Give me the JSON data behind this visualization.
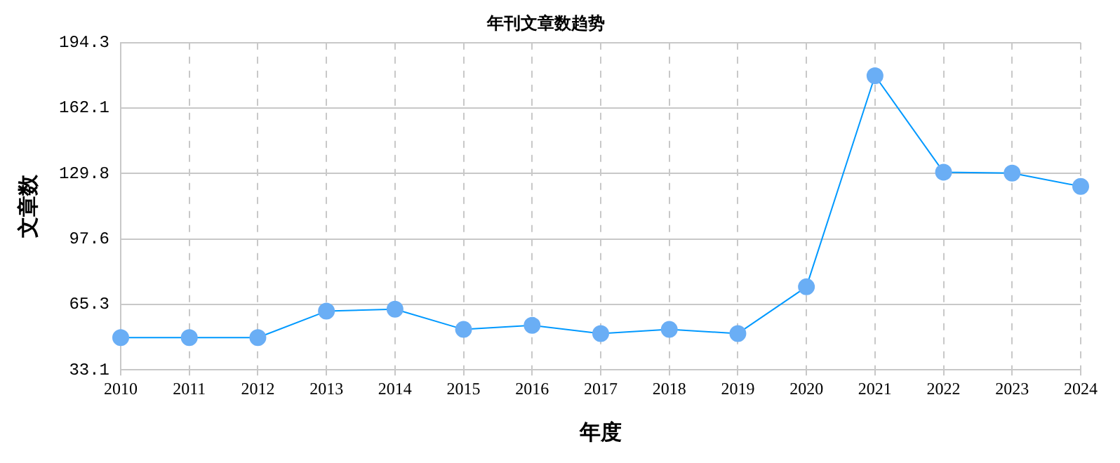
{
  "chart_data": {
    "type": "line",
    "title": "年刊文章数趋势",
    "xlabel": "年度",
    "ylabel": "文章数",
    "categories": [
      "2010",
      "2011",
      "2012",
      "2013",
      "2014",
      "2015",
      "2016",
      "2017",
      "2018",
      "2019",
      "2020",
      "2021",
      "2022",
      "2023",
      "2024"
    ],
    "series": [
      {
        "color": "#0099ff",
        "values": [
          49,
          49,
          49,
          62,
          63,
          53,
          55,
          51,
          53,
          51,
          74,
          178,
          130.5,
          130,
          123.5
        ]
      }
    ],
    "ylim": [
      33.1,
      194.3
    ],
    "yticks": [
      33.1,
      65.3,
      97.6,
      129.8,
      162.1,
      194.3
    ],
    "grid": true,
    "marker": "circle",
    "line_style": "solid"
  }
}
